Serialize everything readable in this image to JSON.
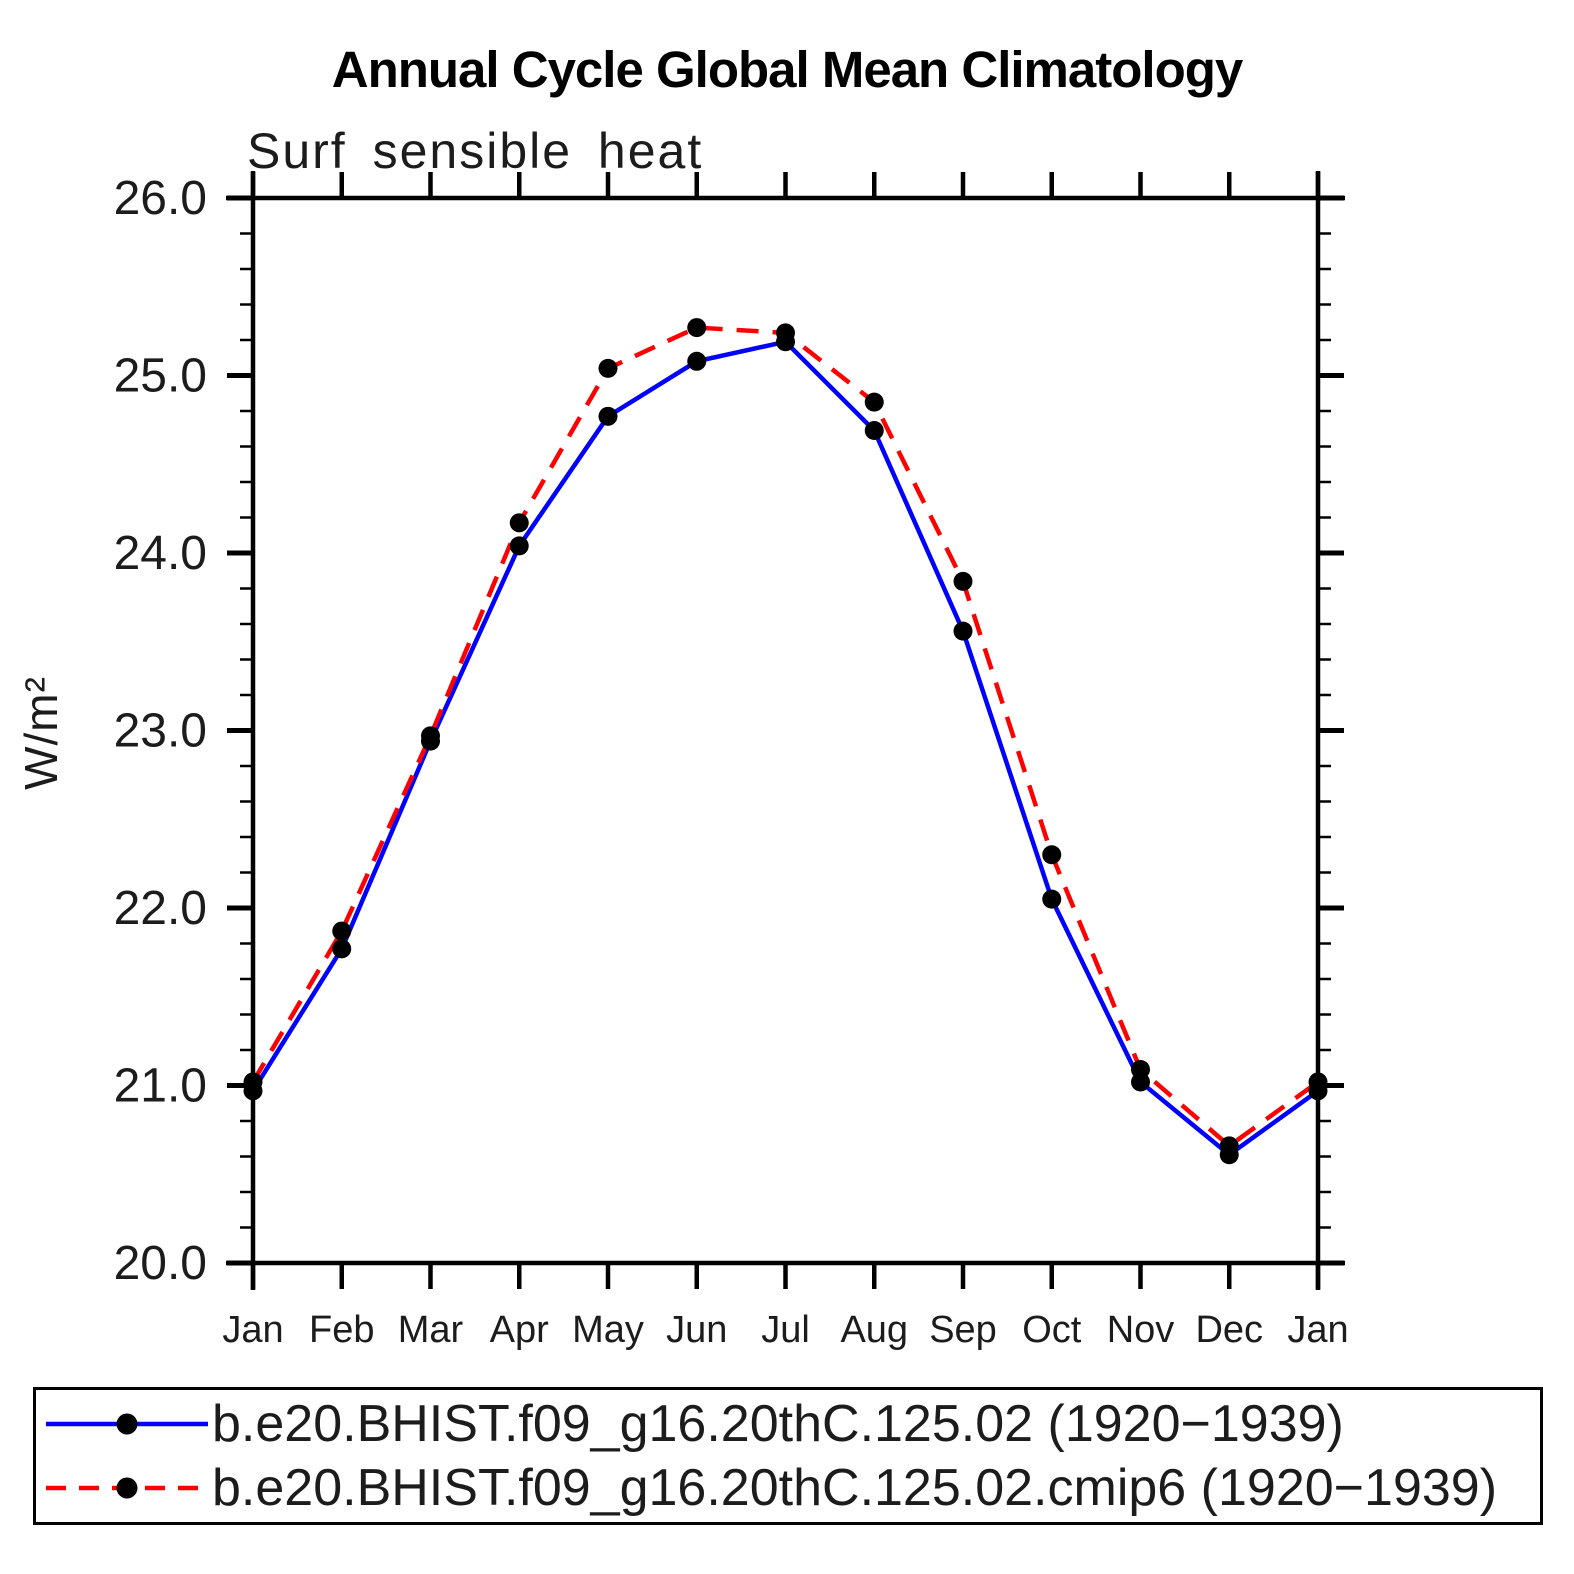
{
  "title": "Annual Cycle Global Mean Climatology",
  "subtitle": "Surf sensible heat",
  "chart_data": {
    "type": "line",
    "title": "Annual Cycle Global Mean Climatology",
    "subtitle": "Surf sensible heat",
    "xlabel": "",
    "ylabel": "W/m²",
    "categories": [
      "Jan",
      "Feb",
      "Mar",
      "Apr",
      "May",
      "Jun",
      "Jul",
      "Aug",
      "Sep",
      "Oct",
      "Nov",
      "Dec",
      "Jan"
    ],
    "ylim": [
      20.0,
      26.0
    ],
    "y_major_ticks": [
      20.0,
      21.0,
      22.0,
      23.0,
      24.0,
      25.0,
      26.0
    ],
    "y_tick_labels": [
      "20.0",
      "21.0",
      "22.0",
      "23.0",
      "24.0",
      "25.0",
      "26.0"
    ],
    "y_minor_step": 0.2,
    "grid": false,
    "legend_position": "bottom",
    "marker": "filled-circle",
    "marker_color": "#000000",
    "axis_color": "#000000",
    "series": [
      {
        "name": "b.e20.BHIST.f09_g16.20thC.125.02 (1920−1939)",
        "color": "#0000ff",
        "style": "solid",
        "values": [
          20.97,
          21.77,
          22.94,
          24.04,
          24.77,
          25.08,
          25.19,
          24.69,
          23.56,
          22.05,
          21.02,
          20.61,
          20.97
        ]
      },
      {
        "name": "b.e20.BHIST.f09_g16.20thC.125.02.cmip6 (1920−1939)",
        "color": "#ff0000",
        "style": "dashed",
        "values": [
          21.02,
          21.87,
          22.97,
          24.17,
          25.04,
          25.27,
          25.24,
          24.85,
          23.84,
          22.3,
          21.09,
          20.66,
          21.02
        ]
      }
    ]
  }
}
